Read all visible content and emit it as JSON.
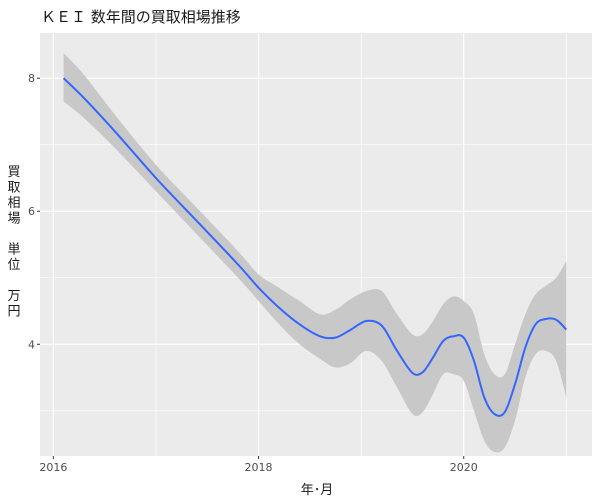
{
  "chart_data": {
    "type": "line",
    "title": "ＫＥＩ 数年間の買取相場推移",
    "xlabel": "年･月",
    "ylabel": "買取相場　単位　万円",
    "ylabel_chars": [
      "買",
      "取",
      "相",
      "場",
      "",
      "単",
      "位",
      "",
      "万",
      "円"
    ],
    "x_ticks": [
      2016,
      2018,
      2020
    ],
    "y_ticks": [
      4,
      6,
      8
    ],
    "xlim": [
      2015.87,
      2021.25
    ],
    "ylim": [
      2.32,
      8.68
    ],
    "grid": true,
    "legend": "none",
    "series": [
      {
        "x": [
          2016.1,
          2016.3,
          2016.6,
          2017.0,
          2017.4,
          2017.8,
          2018.0,
          2018.2,
          2018.4,
          2018.6,
          2018.75,
          2018.9,
          2019.05,
          2019.2,
          2019.35,
          2019.5,
          2019.6,
          2019.7,
          2019.8,
          2019.9,
          2020.0,
          2020.1,
          2020.2,
          2020.3,
          2020.4,
          2020.5,
          2020.6,
          2020.7,
          2020.8,
          2020.9,
          2021.0
        ],
        "values": [
          8.0,
          7.7,
          7.2,
          6.5,
          5.85,
          5.2,
          4.85,
          4.55,
          4.3,
          4.12,
          4.1,
          4.22,
          4.35,
          4.28,
          3.9,
          3.57,
          3.58,
          3.8,
          4.05,
          4.12,
          4.1,
          3.75,
          3.2,
          2.95,
          2.98,
          3.4,
          3.95,
          4.3,
          4.38,
          4.37,
          4.22
        ],
        "lower": [
          7.65,
          7.4,
          6.95,
          6.3,
          5.65,
          5.0,
          4.65,
          4.3,
          4.0,
          3.78,
          3.65,
          3.72,
          3.9,
          3.75,
          3.35,
          2.95,
          2.98,
          3.25,
          3.55,
          3.55,
          3.45,
          3.0,
          2.55,
          2.38,
          2.45,
          2.85,
          3.5,
          3.85,
          3.9,
          3.75,
          3.2
        ],
        "upper": [
          8.38,
          8.05,
          7.45,
          6.7,
          6.05,
          5.4,
          5.05,
          4.85,
          4.65,
          4.45,
          4.52,
          4.68,
          4.8,
          4.8,
          4.45,
          4.15,
          4.15,
          4.35,
          4.6,
          4.72,
          4.65,
          4.45,
          3.85,
          3.55,
          3.55,
          4.0,
          4.45,
          4.75,
          4.88,
          5.0,
          5.25
        ]
      }
    ],
    "colors": {
      "panel": "#ebebeb",
      "grid": "#ffffff",
      "line": "#3366ff",
      "band": "#c8c8c8"
    }
  }
}
